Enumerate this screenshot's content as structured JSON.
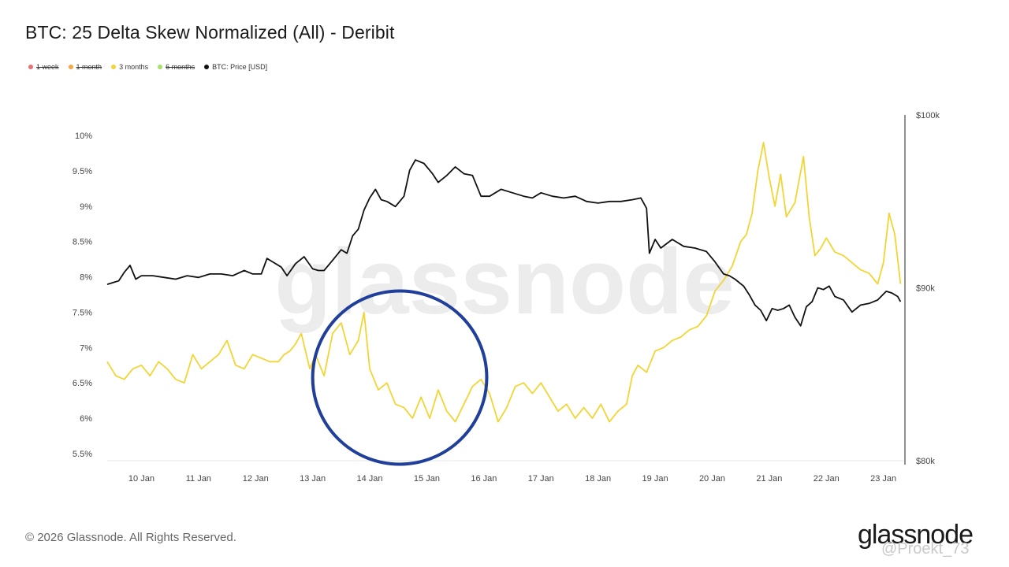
{
  "title": "BTC: 25 Delta Skew Normalized (All) - Deribit",
  "legend": [
    {
      "label": "1 week",
      "color": "#e57373",
      "disabled": true
    },
    {
      "label": "1 month",
      "color": "#f5a742",
      "disabled": true
    },
    {
      "label": "3 months",
      "color": "#f2d535",
      "disabled": false
    },
    {
      "label": "6 months",
      "color": "#a6e06a",
      "disabled": true
    },
    {
      "label": "BTC: Price [USD]",
      "color": "#111111",
      "disabled": false
    }
  ],
  "watermark": "glassnode",
  "footer": "© 2026 Glassnode. All Rights Reserved.",
  "brand": "glassnode",
  "handle": "@Proekt_73",
  "chart_data": {
    "type": "line",
    "x_label": "",
    "x_ticks": [
      "10 Jan",
      "11 Jan",
      "12 Jan",
      "13 Jan",
      "14 Jan",
      "15 Jan",
      "16 Jan",
      "17 Jan",
      "18 Jan",
      "19 Jan",
      "20 Jan",
      "21 Jan",
      "22 Jan",
      "23 Jan"
    ],
    "x_range": [
      9.4,
      23.35
    ],
    "y_left": {
      "ticks": [
        "5.5%",
        "6%",
        "6.5%",
        "7%",
        "7.5%",
        "8%",
        "8.5%",
        "9%",
        "9.5%",
        "10%"
      ],
      "range": [
        5.5,
        10.0
      ],
      "unit": "%"
    },
    "y_right": {
      "ticks": [
        "$80k",
        "$90k",
        "$100k"
      ],
      "range": [
        80000,
        100000
      ]
    },
    "grid": false,
    "series": [
      {
        "name": "3 months",
        "axis": "left",
        "color": "#f2d535",
        "x": [
          9.4,
          9.55,
          9.7,
          9.85,
          10.0,
          10.15,
          10.3,
          10.45,
          10.6,
          10.75,
          10.9,
          11.05,
          11.2,
          11.35,
          11.5,
          11.65,
          11.8,
          11.95,
          12.1,
          12.25,
          12.4,
          12.5,
          12.6,
          12.7,
          12.8,
          12.95,
          13.05,
          13.2,
          13.35,
          13.5,
          13.65,
          13.8,
          13.9,
          14.0,
          14.15,
          14.3,
          14.45,
          14.6,
          14.75,
          14.9,
          15.05,
          15.2,
          15.35,
          15.5,
          15.65,
          15.8,
          15.95,
          16.1,
          16.25,
          16.4,
          16.55,
          16.7,
          16.85,
          17.0,
          17.15,
          17.3,
          17.45,
          17.6,
          17.75,
          17.9,
          18.05,
          18.2,
          18.35,
          18.5,
          18.6,
          18.7,
          18.85,
          19.0,
          19.15,
          19.3,
          19.45,
          19.6,
          19.75,
          19.9,
          20.05,
          20.2,
          20.35,
          20.5,
          20.6,
          20.7,
          20.8,
          20.9,
          21.0,
          21.1,
          21.2,
          21.3,
          21.45,
          21.6,
          21.7,
          21.8,
          21.9,
          22.0,
          22.15,
          22.3,
          22.45,
          22.6,
          22.75,
          22.9,
          23.0,
          23.1,
          23.2,
          23.3
        ],
        "y": [
          6.8,
          6.6,
          6.55,
          6.7,
          6.75,
          6.6,
          6.8,
          6.7,
          6.55,
          6.5,
          6.9,
          6.7,
          6.8,
          6.9,
          7.1,
          6.75,
          6.7,
          6.9,
          6.85,
          6.8,
          6.8,
          6.9,
          6.95,
          7.05,
          7.2,
          6.7,
          6.9,
          6.6,
          7.2,
          7.35,
          6.9,
          7.1,
          7.5,
          6.7,
          6.4,
          6.5,
          6.2,
          6.15,
          6.0,
          6.3,
          6.0,
          6.4,
          6.1,
          5.95,
          6.2,
          6.45,
          6.55,
          6.35,
          5.95,
          6.15,
          6.45,
          6.5,
          6.35,
          6.5,
          6.3,
          6.1,
          6.2,
          6.0,
          6.15,
          6.0,
          6.2,
          5.95,
          6.1,
          6.2,
          6.6,
          6.75,
          6.65,
          6.95,
          7.0,
          7.1,
          7.15,
          7.25,
          7.3,
          7.45,
          7.8,
          7.95,
          8.15,
          8.5,
          8.6,
          8.9,
          9.5,
          9.9,
          9.4,
          9.0,
          9.45,
          8.85,
          9.05,
          9.7,
          8.85,
          8.3,
          8.4,
          8.55,
          8.35,
          8.3,
          8.2,
          8.1,
          8.05,
          7.9,
          8.2,
          8.9,
          8.6,
          7.9
        ]
      },
      {
        "name": "BTC: Price [USD]",
        "axis": "right",
        "color": "#111111",
        "x": [
          9.4,
          9.5,
          9.6,
          9.7,
          9.8,
          9.9,
          10.0,
          10.2,
          10.4,
          10.6,
          10.8,
          11.0,
          11.2,
          11.4,
          11.6,
          11.8,
          11.95,
          12.1,
          12.2,
          12.3,
          12.45,
          12.55,
          12.7,
          12.85,
          13.0,
          13.1,
          13.2,
          13.35,
          13.5,
          13.6,
          13.7,
          13.8,
          13.9,
          14.0,
          14.1,
          14.2,
          14.3,
          14.45,
          14.6,
          14.7,
          14.8,
          14.95,
          15.1,
          15.2,
          15.35,
          15.5,
          15.65,
          15.8,
          15.95,
          16.1,
          16.3,
          16.5,
          16.7,
          16.85,
          17.0,
          17.2,
          17.4,
          17.6,
          17.8,
          18.0,
          18.2,
          18.4,
          18.6,
          18.75,
          18.85,
          18.9,
          19.0,
          19.1,
          19.3,
          19.5,
          19.7,
          19.9,
          20.05,
          20.2,
          20.3,
          20.4,
          20.55,
          20.65,
          20.75,
          20.85,
          20.95,
          21.05,
          21.15,
          21.25,
          21.35,
          21.45,
          21.55,
          21.65,
          21.75,
          21.85,
          21.95,
          22.05,
          22.15,
          22.3,
          22.45,
          22.6,
          22.75,
          22.9,
          23.05,
          23.15,
          23.25,
          23.3
        ],
        "y": [
          90200,
          90300,
          90400,
          90900,
          91300,
          90500,
          90700,
          90700,
          90600,
          90500,
          90700,
          90600,
          90800,
          90800,
          90700,
          91000,
          90800,
          90800,
          91700,
          91500,
          91200,
          90700,
          91400,
          91800,
          91100,
          91000,
          91000,
          91600,
          92200,
          92000,
          93000,
          93400,
          94500,
          95200,
          95700,
          95100,
          95000,
          94700,
          95300,
          96800,
          97400,
          97200,
          96600,
          96100,
          96500,
          97000,
          96600,
          96500,
          95300,
          95300,
          95700,
          95500,
          95300,
          95200,
          95500,
          95300,
          95200,
          95300,
          95000,
          94900,
          95000,
          95000,
          95100,
          95200,
          94600,
          92000,
          92800,
          92300,
          92800,
          92400,
          92300,
          92100,
          91500,
          90800,
          90700,
          90500,
          90100,
          89600,
          89000,
          88700,
          88100,
          88800,
          88700,
          88800,
          89000,
          88300,
          87800,
          88900,
          89200,
          90000,
          89900,
          90100,
          89500,
          89300,
          88600,
          89000,
          89100,
          89300,
          89800,
          89700,
          89500,
          89200
        ]
      }
    ],
    "annotations": [
      {
        "type": "ellipse",
        "color": "#1f3f9a",
        "x_range": [
          13.0,
          16.05
        ],
        "y_range": [
          5.35,
          7.8
        ]
      }
    ]
  }
}
